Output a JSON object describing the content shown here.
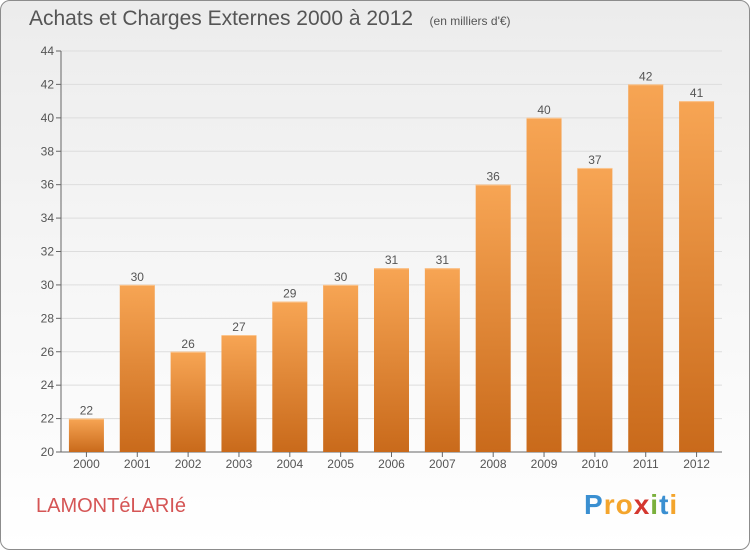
{
  "title": "Achats et Charges Externes 2000 à 2012",
  "unit": "(en milliers d'€)",
  "commune": "LAMONTéLARIé",
  "logo": {
    "letters": [
      "P",
      "r",
      "o",
      "x",
      "i",
      "t",
      "i"
    ],
    "colors": [
      "#3a8fd1",
      "#f4a52c",
      "#f4a52c",
      "#d4372f",
      "#7ab03c",
      "#3a8fd1",
      "#f4a52c"
    ]
  },
  "colors": {
    "bar_top": "#f7a554",
    "bar_bottom": "#c96a1b",
    "text": "#555555",
    "commune": "#d55555"
  },
  "chart_data": {
    "type": "bar",
    "categories": [
      "2000",
      "2001",
      "2002",
      "2003",
      "2004",
      "2005",
      "2006",
      "2007",
      "2008",
      "2009",
      "2010",
      "2011",
      "2012"
    ],
    "values": [
      22,
      30,
      26,
      27,
      29,
      30,
      31,
      31,
      36,
      40,
      37,
      42,
      41
    ],
    "ylim": [
      20,
      44
    ],
    "yticks": [
      20,
      22,
      24,
      26,
      28,
      30,
      32,
      34,
      36,
      38,
      40,
      42,
      44
    ],
    "grid": true
  }
}
